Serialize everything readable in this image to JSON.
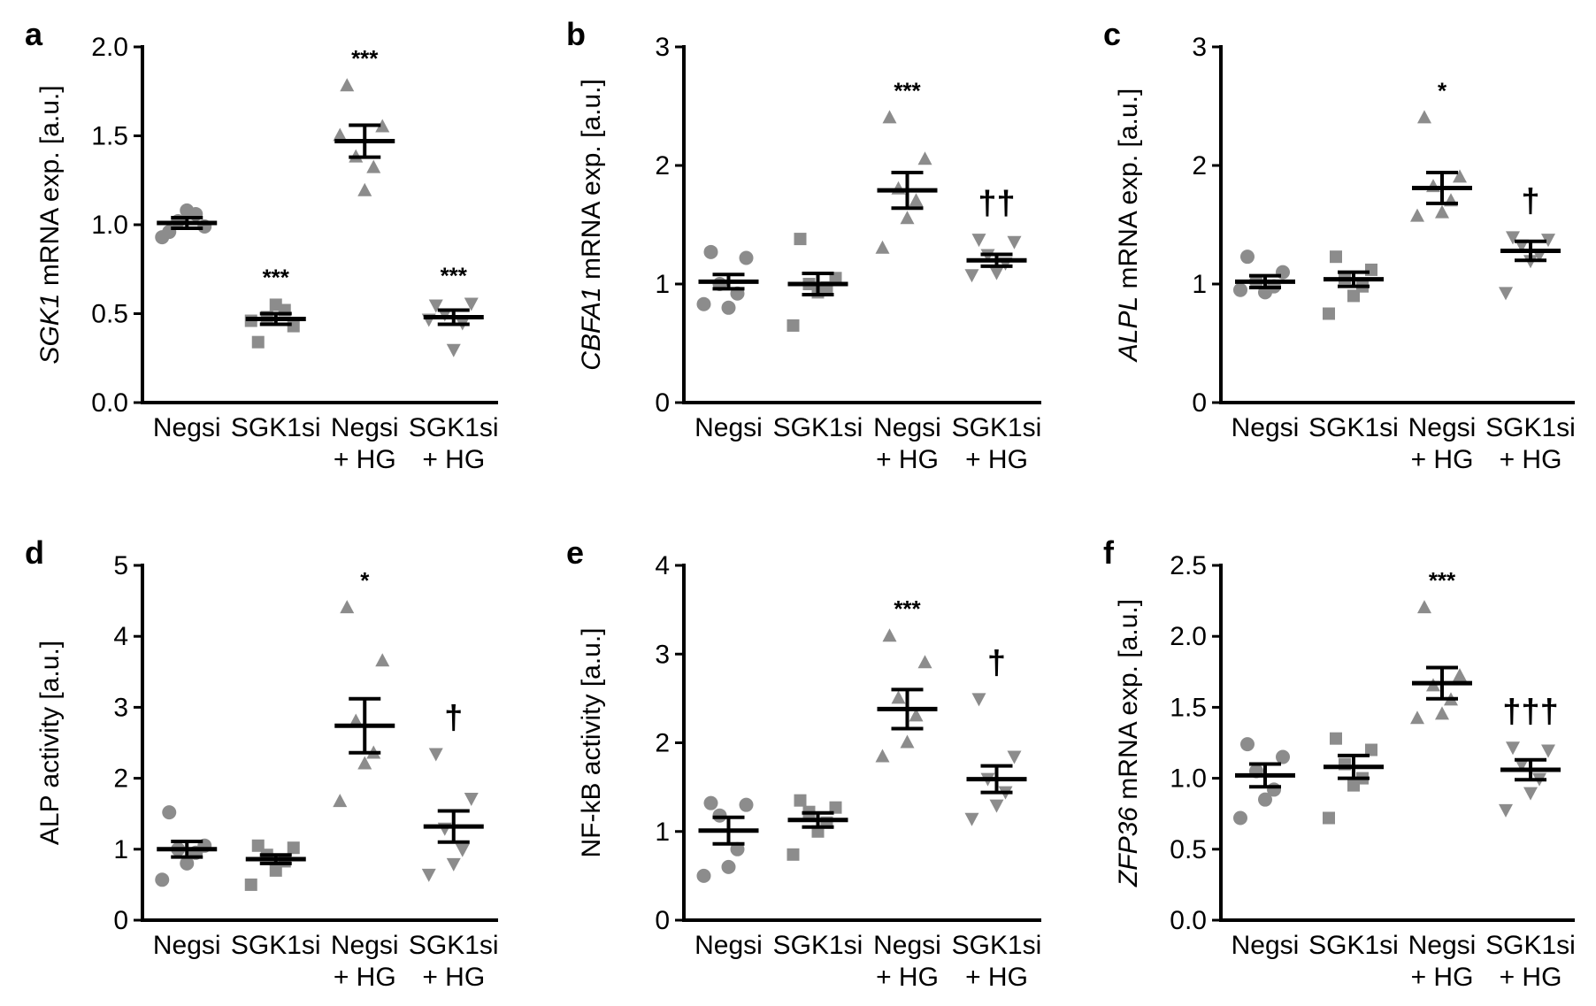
{
  "figure": {
    "categories": [
      [
        "Negsi"
      ],
      [
        "SGK1si"
      ],
      [
        "Negsi",
        "+ HG"
      ],
      [
        "SGK1si",
        "+ HG"
      ]
    ],
    "marker_color": "#8c8c8c",
    "line_color": "#000000"
  },
  "chart_data": [
    {
      "panel": "a",
      "type": "scatter",
      "ylabel_italic": "SGK1",
      "ylabel_rest": " mRNA exp. [a.u.]",
      "ylim": [
        0,
        2.0
      ],
      "ticks": [
        "0.0",
        "0.5",
        "1.0",
        "1.5",
        "2.0"
      ],
      "groups": [
        {
          "marker": "circle",
          "mean": 1.01,
          "sem": 0.03,
          "points": [
            0.96,
            0.99,
            1.02,
            1.06,
            1.08,
            0.93
          ],
          "stars": "",
          "dagger": ""
        },
        {
          "marker": "square",
          "mean": 0.47,
          "sem": 0.03,
          "points": [
            0.34,
            0.43,
            0.48,
            0.52,
            0.55,
            0.46
          ],
          "stars": "***",
          "dagger": ""
        },
        {
          "marker": "triangle",
          "mean": 1.47,
          "sem": 0.09,
          "points": [
            1.78,
            1.55,
            1.38,
            1.32,
            1.19,
            1.5
          ],
          "stars": "***",
          "dagger": ""
        },
        {
          "marker": "triangle-down",
          "mean": 0.48,
          "sem": 0.04,
          "points": [
            0.55,
            0.56,
            0.5,
            0.45,
            0.3,
            0.47
          ],
          "stars": "***",
          "dagger": ""
        }
      ]
    },
    {
      "panel": "b",
      "type": "scatter",
      "ylabel_italic": "CBFA1",
      "ylabel_rest": " mRNA exp. [a.u.]",
      "ylim": [
        0,
        3
      ],
      "ticks": [
        "0",
        "1",
        "2",
        "3"
      ],
      "groups": [
        {
          "marker": "circle",
          "mean": 1.02,
          "sem": 0.06,
          "points": [
            1.27,
            1.22,
            1.0,
            0.92,
            0.8,
            0.83
          ],
          "stars": "",
          "dagger": ""
        },
        {
          "marker": "square",
          "mean": 1.0,
          "sem": 0.09,
          "points": [
            1.38,
            1.05,
            1.0,
            0.97,
            0.93,
            0.65
          ],
          "stars": "",
          "dagger": ""
        },
        {
          "marker": "triangle",
          "mean": 1.79,
          "sem": 0.15,
          "points": [
            2.4,
            2.05,
            1.8,
            1.7,
            1.55,
            1.3
          ],
          "stars": "***",
          "dagger": ""
        },
        {
          "marker": "triangle-down",
          "mean": 1.2,
          "sem": 0.05,
          "points": [
            1.38,
            1.36,
            1.25,
            1.18,
            1.1,
            1.08
          ],
          "stars": "",
          "dagger": "††"
        }
      ]
    },
    {
      "panel": "c",
      "type": "scatter",
      "ylabel_italic": "ALPL",
      "ylabel_rest": " mRNA exp. [a.u.]",
      "ylim": [
        0,
        3
      ],
      "ticks": [
        "0",
        "1",
        "2",
        "3"
      ],
      "groups": [
        {
          "marker": "circle",
          "mean": 1.02,
          "sem": 0.05,
          "points": [
            1.23,
            1.1,
            1.02,
            0.98,
            0.93,
            0.95
          ],
          "stars": "",
          "dagger": ""
        },
        {
          "marker": "square",
          "mean": 1.04,
          "sem": 0.06,
          "points": [
            1.23,
            1.12,
            1.05,
            0.98,
            0.9,
            0.75
          ],
          "stars": "",
          "dagger": ""
        },
        {
          "marker": "triangle",
          "mean": 1.81,
          "sem": 0.13,
          "points": [
            2.4,
            1.9,
            1.82,
            1.7,
            1.6,
            1.57
          ],
          "stars": "*",
          "dagger": ""
        },
        {
          "marker": "triangle-down",
          "mean": 1.28,
          "sem": 0.08,
          "points": [
            1.4,
            1.38,
            1.33,
            1.25,
            1.2,
            0.93
          ],
          "stars": "",
          "dagger": "†"
        }
      ]
    },
    {
      "panel": "d",
      "type": "scatter",
      "ylabel_italic": "",
      "ylabel_rest": "ALP activity [a.u.]",
      "ylim": [
        0,
        5
      ],
      "ticks": [
        "0",
        "1",
        "2",
        "3",
        "4",
        "5"
      ],
      "groups": [
        {
          "marker": "circle",
          "mean": 1.0,
          "sem": 0.11,
          "points": [
            1.52,
            1.05,
            1.0,
            0.95,
            0.8,
            0.57
          ],
          "stars": "",
          "dagger": ""
        },
        {
          "marker": "square",
          "mean": 0.86,
          "sem": 0.06,
          "points": [
            1.05,
            1.02,
            0.92,
            0.83,
            0.7,
            0.5
          ],
          "stars": "",
          "dagger": ""
        },
        {
          "marker": "triangle",
          "mean": 2.74,
          "sem": 0.38,
          "points": [
            4.4,
            3.65,
            2.8,
            2.35,
            2.2,
            1.67
          ],
          "stars": "*",
          "dagger": ""
        },
        {
          "marker": "triangle-down",
          "mean": 1.32,
          "sem": 0.22,
          "points": [
            2.35,
            1.72,
            1.3,
            1.0,
            0.8,
            0.65
          ],
          "stars": "",
          "dagger": "†"
        }
      ]
    },
    {
      "panel": "e",
      "type": "scatter",
      "ylabel_italic": "",
      "ylabel_rest": "NF-kB activity [a.u.]",
      "ylim": [
        0,
        4
      ],
      "ticks": [
        "0",
        "1",
        "2",
        "3",
        "4"
      ],
      "groups": [
        {
          "marker": "circle",
          "mean": 1.01,
          "sem": 0.15,
          "points": [
            1.32,
            1.3,
            1.18,
            0.8,
            0.6,
            0.5
          ],
          "stars": "",
          "dagger": ""
        },
        {
          "marker": "square",
          "mean": 1.13,
          "sem": 0.08,
          "points": [
            1.35,
            1.27,
            1.22,
            1.1,
            1.0,
            0.74
          ],
          "stars": "",
          "dagger": ""
        },
        {
          "marker": "triangle",
          "mean": 2.38,
          "sem": 0.22,
          "points": [
            3.2,
            2.9,
            2.5,
            2.3,
            2.0,
            1.84
          ],
          "stars": "***",
          "dagger": ""
        },
        {
          "marker": "triangle-down",
          "mean": 1.59,
          "sem": 0.15,
          "points": [
            2.5,
            1.85,
            1.6,
            1.45,
            1.3,
            1.15
          ],
          "stars": "",
          "dagger": "†"
        }
      ]
    },
    {
      "panel": "f",
      "type": "scatter",
      "ylabel_italic": "ZFP36",
      "ylabel_rest": " mRNA exp. [a.u.]",
      "ylim": [
        0,
        2.5
      ],
      "ticks": [
        "0.0",
        "0.5",
        "1.0",
        "1.5",
        "2.0",
        "2.5"
      ],
      "groups": [
        {
          "marker": "circle",
          "mean": 1.02,
          "sem": 0.08,
          "points": [
            1.24,
            1.15,
            1.05,
            0.92,
            0.85,
            0.72
          ],
          "stars": "",
          "dagger": ""
        },
        {
          "marker": "square",
          "mean": 1.08,
          "sem": 0.08,
          "points": [
            1.28,
            1.2,
            1.1,
            1.0,
            0.95,
            0.72
          ],
          "stars": "",
          "dagger": ""
        },
        {
          "marker": "triangle",
          "mean": 1.67,
          "sem": 0.11,
          "points": [
            2.2,
            1.72,
            1.65,
            1.55,
            1.45,
            1.42
          ],
          "stars": "***",
          "dagger": ""
        },
        {
          "marker": "triangle-down",
          "mean": 1.06,
          "sem": 0.07,
          "points": [
            1.22,
            1.2,
            1.1,
            1.0,
            0.9,
            0.78
          ],
          "stars": "",
          "dagger": "†††"
        }
      ]
    }
  ]
}
